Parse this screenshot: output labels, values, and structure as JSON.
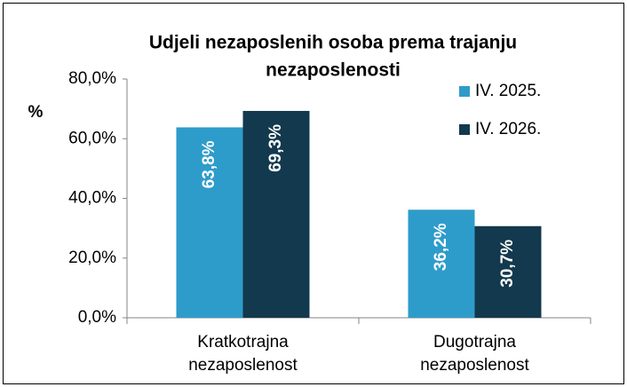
{
  "chart_data": {
    "type": "bar",
    "title": [
      "Udjeli nezaposlenih osoba prema trajanju",
      "nezaposlenosti"
    ],
    "y_label": "%",
    "categories": [
      "Kratkotrajna nezaposlenost",
      "Dugotrajna nezaposlenost"
    ],
    "series": [
      {
        "name": "IV. 2025.",
        "color": "#2e9cca",
        "values": [
          63.8,
          36.2
        ],
        "value_labels": [
          "63,8%",
          "36,2%"
        ]
      },
      {
        "name": "IV. 2026.",
        "color": "#12394d",
        "values": [
          69.3,
          30.7
        ],
        "value_labels": [
          "69,3%",
          "30,7%"
        ]
      }
    ],
    "ylim": [
      0,
      80
    ],
    "yticks": [
      {
        "value": 0,
        "label": "0,0%"
      },
      {
        "value": 20,
        "label": "20,0%"
      },
      {
        "value": 40,
        "label": "40,0%"
      },
      {
        "value": 60,
        "label": "60,0%"
      },
      {
        "value": 80,
        "label": "80,0%"
      }
    ],
    "grid": false,
    "legend": "upper right"
  }
}
